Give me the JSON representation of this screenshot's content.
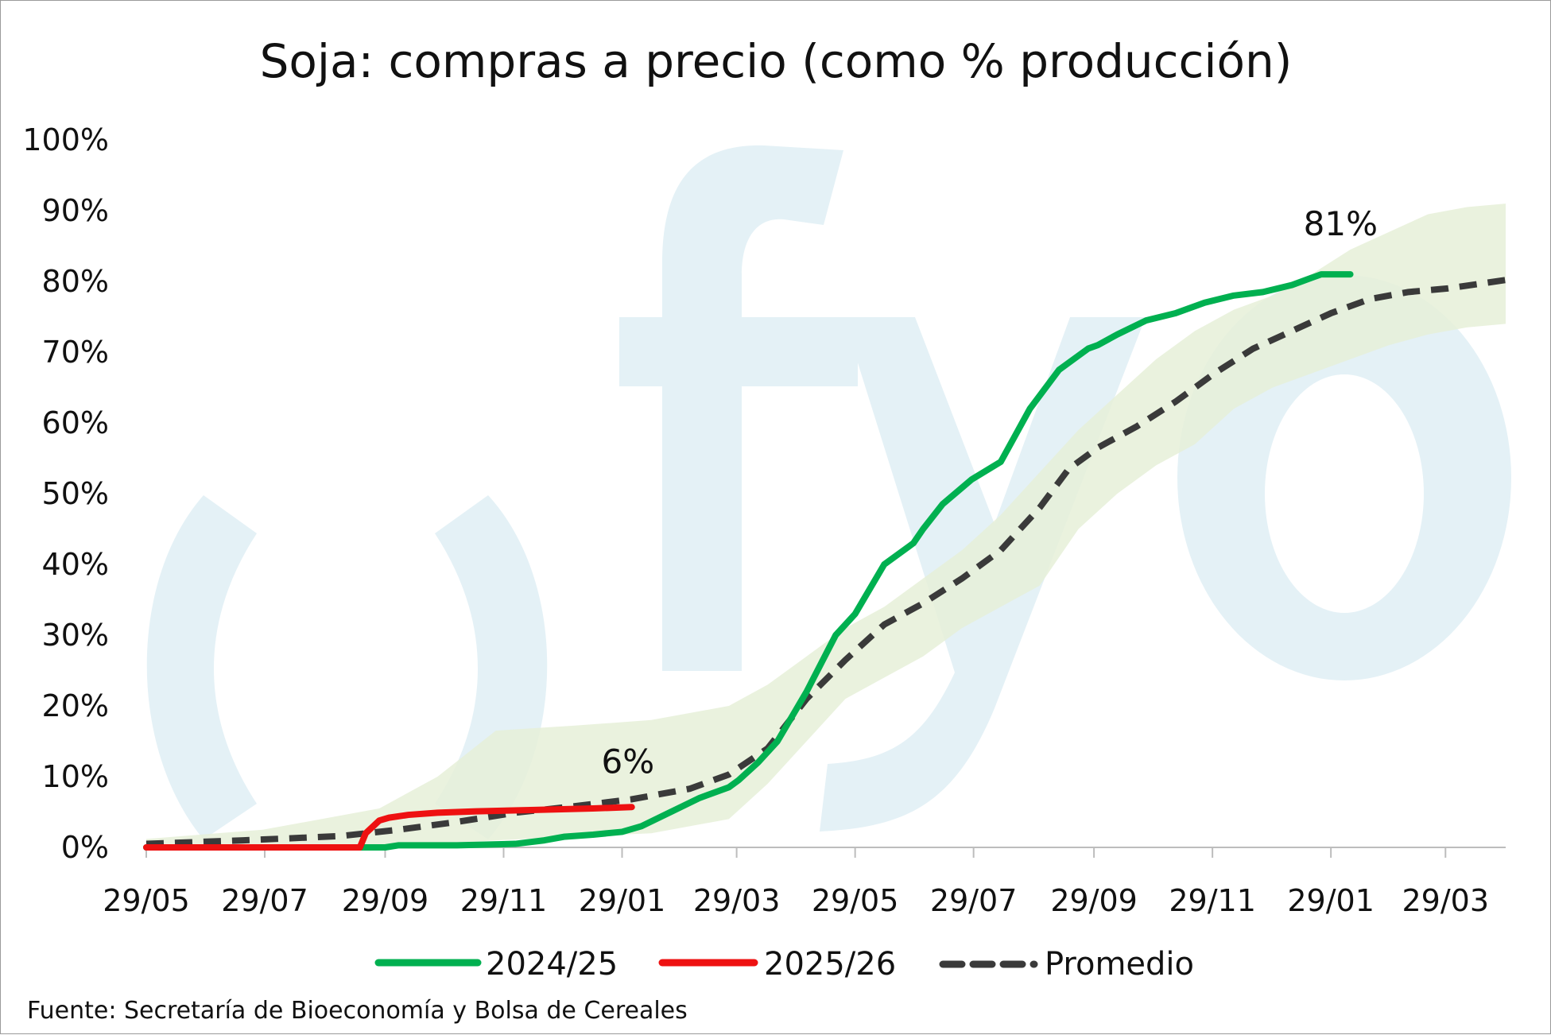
{
  "chart_data": {
    "type": "line",
    "title": "Soja: compras a precio (como % producción)",
    "xlabel": "",
    "ylabel": "",
    "ylim": [
      0,
      100
    ],
    "y_ticks": [
      "0%",
      "10%",
      "20%",
      "30%",
      "40%",
      "50%",
      "60%",
      "70%",
      "80%",
      "90%",
      "100%"
    ],
    "y_tick_values": [
      0,
      10,
      20,
      30,
      40,
      50,
      60,
      70,
      80,
      90,
      100
    ],
    "x_range_days": [
      0,
      700
    ],
    "x_ticks": [
      {
        "label": "29/05",
        "day": 0
      },
      {
        "label": "29/07",
        "day": 61
      },
      {
        "label": "29/09",
        "day": 123
      },
      {
        "label": "29/11",
        "day": 184
      },
      {
        "label": "29/01",
        "day": 245
      },
      {
        "label": "29/03",
        "day": 304
      },
      {
        "label": "29/05",
        "day": 365
      },
      {
        "label": "29/07",
        "day": 426
      },
      {
        "label": "29/09",
        "day": 488
      },
      {
        "label": "29/11",
        "day": 549
      },
      {
        "label": "29/01",
        "day": 610
      },
      {
        "label": "29/03",
        "day": 669
      }
    ],
    "series": [
      {
        "name": "2024/25",
        "color": "#00b050",
        "style": "solid",
        "x": [
          0,
          60,
          110,
          123,
          130,
          160,
          190,
          205,
          215,
          230,
          245,
          255,
          270,
          285,
          300,
          305,
          315,
          325,
          340,
          355,
          365,
          380,
          395,
          400,
          410,
          425,
          440,
          455,
          470,
          480,
          485,
          490,
          500,
          515,
          530,
          545,
          560,
          575,
          590,
          600,
          605,
          620
        ],
        "y": [
          0,
          0,
          0,
          0,
          0.3,
          0.3,
          0.5,
          1,
          1.5,
          1.8,
          2.2,
          3,
          5,
          7,
          8.5,
          9.5,
          12,
          15,
          22,
          30,
          33,
          40,
          43,
          45,
          48.5,
          52,
          54.5,
          62,
          67.5,
          69.5,
          70.5,
          71,
          72.5,
          74.5,
          75.5,
          77,
          78,
          78.5,
          79.5,
          80.5,
          81,
          81
        ]
      },
      {
        "name": "2025/26",
        "color": "#ee1111",
        "style": "solid",
        "x": [
          0,
          110,
          113,
          120,
          125,
          135,
          150,
          170,
          200,
          230,
          250
        ],
        "y": [
          0,
          0,
          2,
          3.8,
          4.2,
          4.6,
          4.9,
          5.1,
          5.3,
          5.5,
          5.7
        ]
      },
      {
        "name": "Promedio",
        "color": "#3a3a3a",
        "style": "dashed",
        "x": [
          0,
          50,
          100,
          130,
          160,
          190,
          220,
          250,
          280,
          300,
          320,
          340,
          360,
          380,
          400,
          420,
          440,
          460,
          475,
          490,
          510,
          530,
          550,
          570,
          590,
          610,
          630,
          650,
          670,
          700
        ],
        "y": [
          0.5,
          1,
          1.6,
          2.5,
          3.6,
          4.9,
          5.8,
          6.8,
          8.3,
          10.3,
          14,
          21,
          26.5,
          31.5,
          34.5,
          38,
          42,
          48,
          53.5,
          56.5,
          59.5,
          63,
          67,
          70.5,
          73,
          75.5,
          77.5,
          78.5,
          79,
          80.2
        ]
      }
    ],
    "band": {
      "color": "#e6f0d8",
      "x": [
        0,
        60,
        120,
        150,
        180,
        220,
        260,
        300,
        320,
        340,
        360,
        380,
        400,
        420,
        440,
        460,
        480,
        500,
        520,
        540,
        560,
        580,
        600,
        620,
        640,
        660,
        680,
        700
      ],
      "upper": [
        1.2,
        2.5,
        5.5,
        10,
        16.5,
        17.2,
        18,
        20,
        23,
        27,
        31,
        34,
        38,
        42,
        47,
        53,
        59,
        64,
        69,
        73,
        76,
        78,
        81,
        84.5,
        87,
        89.5,
        90.5,
        91
      ],
      "lower": [
        0,
        0,
        0,
        0.5,
        1,
        1.5,
        2,
        4,
        9,
        15,
        21,
        24,
        27,
        31,
        34,
        37,
        45,
        50,
        54,
        57,
        62,
        65,
        67,
        69,
        71,
        72.5,
        73.5,
        74
      ]
    },
    "annotations": [
      {
        "text": "81%",
        "x": 615,
        "y": 86.5
      },
      {
        "text": "6%",
        "x": 248,
        "y": 10.5
      }
    ],
    "legend_position": "bottom",
    "grid": false
  },
  "legend": [
    {
      "label": "2024/25",
      "color": "#00b050",
      "style": "solid"
    },
    {
      "label": "2025/26",
      "color": "#ee1111",
      "style": "solid"
    },
    {
      "label": "Promedio",
      "color": "#3a3a3a",
      "style": "dashed"
    }
  ],
  "source": "Fuente: Secretaría de Bioeconomía y Bolsa de Cereales",
  "watermark": {
    "text": "fyo",
    "color": "#e4f1f6"
  }
}
